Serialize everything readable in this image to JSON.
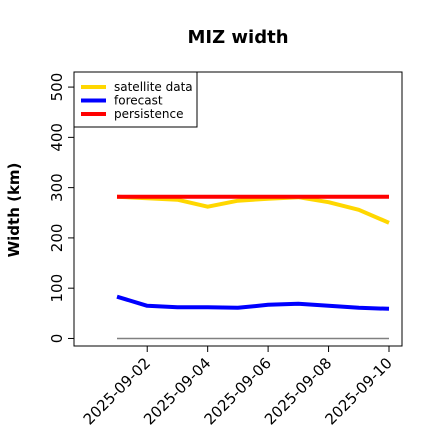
{
  "chart_data": {
    "type": "line",
    "title": "MIZ width",
    "xlabel": "",
    "ylabel": "Width (km)",
    "x": [
      "2025-09-01",
      "2025-09-02",
      "2025-09-03",
      "2025-09-04",
      "2025-09-05",
      "2025-09-06",
      "2025-09-07",
      "2025-09-08",
      "2025-09-09",
      "2025-09-10"
    ],
    "x_tick_labels": [
      "2025-09-02",
      "2025-09-04",
      "2025-09-06",
      "2025-09-08",
      "2025-09-10"
    ],
    "highlight_tick_color": "#228B22",
    "ylim": [
      -15,
      530
    ],
    "y_ticks": [
      0,
      100,
      200,
      300,
      400,
      500
    ],
    "grid": false,
    "legend_position": "top-left",
    "reference_line": {
      "value": 0,
      "color": "#808080"
    },
    "series": [
      {
        "name": "satellite data",
        "color": "#FFD700",
        "values": [
          282,
          279,
          276,
          262,
          274,
          278,
          281,
          271,
          256,
          230
        ]
      },
      {
        "name": "forecast",
        "color": "#0000FF",
        "values": [
          83,
          65,
          62,
          62,
          61,
          67,
          69,
          65,
          61,
          59
        ]
      },
      {
        "name": "persistence",
        "color": "#FF0000",
        "values": [
          282,
          282,
          282,
          282,
          282,
          282,
          282,
          282,
          282,
          282
        ]
      }
    ]
  }
}
